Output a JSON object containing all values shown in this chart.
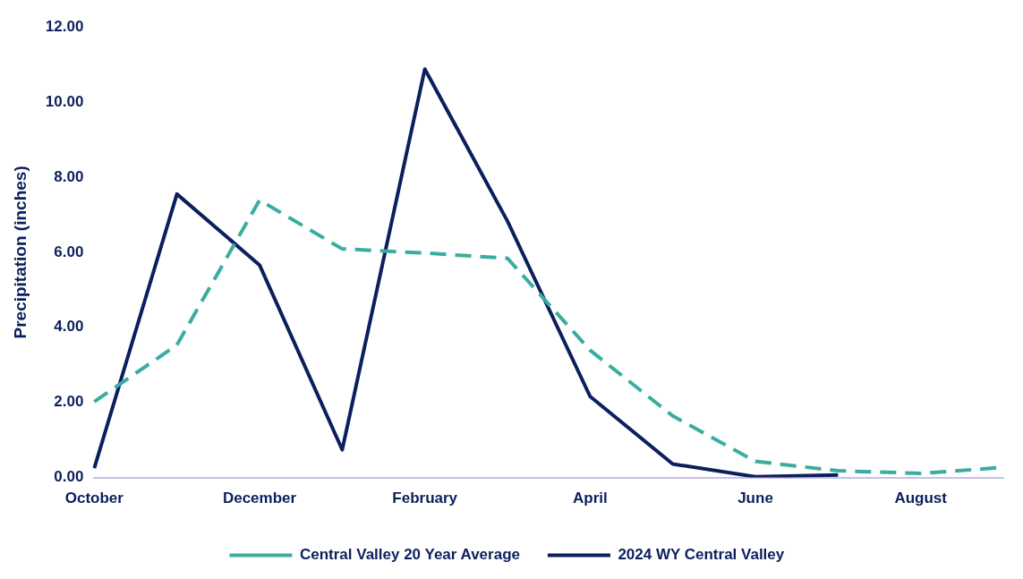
{
  "chart_data": {
    "type": "line",
    "ylabel": "Precipitation (inches)",
    "categories": [
      "October",
      null,
      "December",
      null,
      "February",
      null,
      "April",
      null,
      "June",
      null,
      "August",
      null
    ],
    "series": [
      {
        "name": "Central Valley 20 Year Average",
        "color": "#3aada0",
        "line_style": "dashed",
        "values": [
          2.02,
          3.53,
          7.39,
          6.09,
          5.98,
          5.84,
          3.39,
          1.64,
          0.43,
          0.18,
          0.11,
          0.27
        ]
      },
      {
        "name": "2024 WY Central Valley",
        "color": "#0b1f5c",
        "line_style": "solid",
        "values": [
          0.25,
          7.55,
          5.66,
          0.74,
          10.88,
          6.83,
          2.16,
          0.36,
          0.02,
          0.07,
          null,
          null
        ]
      }
    ],
    "ylim": [
      0,
      12
    ],
    "yticks": [
      {
        "value": 0,
        "label": "0.00"
      },
      {
        "value": 2,
        "label": "2.00"
      },
      {
        "value": 4,
        "label": "4.00"
      },
      {
        "value": 6,
        "label": "6.00"
      },
      {
        "value": 8,
        "label": "8.00"
      },
      {
        "value": 10,
        "label": "10.00"
      },
      {
        "value": 12,
        "label": "12.00"
      }
    ],
    "grid": false,
    "legend": "bottom",
    "marker": "none"
  }
}
